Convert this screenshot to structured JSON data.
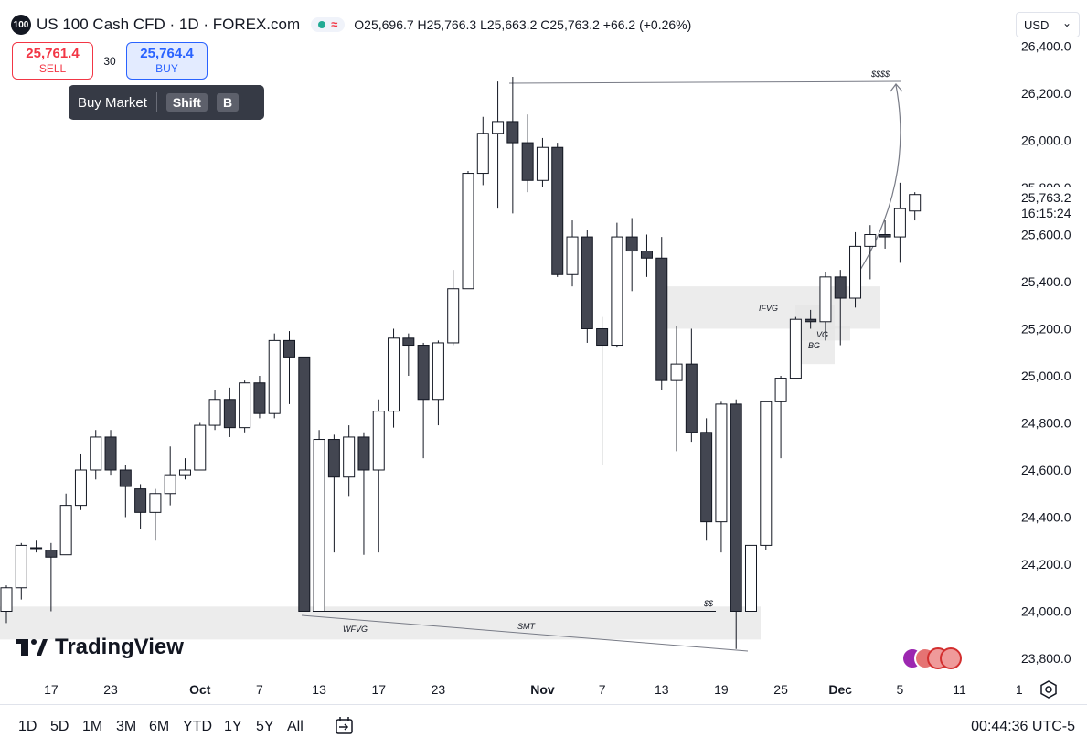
{
  "header": {
    "symbol_badge": "100",
    "title": "US 100 Cash CFD · 1D · FOREX.com",
    "ohlc": {
      "o_label": "O",
      "o": "25,696.7",
      "h_label": "H",
      "h": "25,766.3",
      "l_label": "L",
      "l": "25,663.2",
      "c_label": "C",
      "c": "25,763.2",
      "change": "+66.2 (+0.26%)"
    },
    "currency": "USD",
    "currency_caret": "⌄"
  },
  "trade": {
    "sell_price": "25,761.4",
    "sell_label": "SELL",
    "spread": "30",
    "buy_price": "25,764.4",
    "buy_label": "BUY"
  },
  "tooltip": {
    "text": "Buy Market",
    "key1": "Shift",
    "key2": "B"
  },
  "logo": {
    "text": "TradingView"
  },
  "bottom": {
    "ranges": [
      "1D",
      "5D",
      "1M",
      "3M",
      "6M",
      "YTD",
      "1Y",
      "5Y",
      "All"
    ],
    "clock": "00:44:36 UTC-5"
  },
  "colors": {
    "up_body": "#ffffff",
    "down_body": "#434651",
    "wick": "#131722",
    "zone": "#e6e6e6",
    "price_label_bg": "#ffffff"
  },
  "chart_data": {
    "type": "candlestick",
    "y_axis": {
      "ticks": [
        23800,
        24000,
        24200,
        24400,
        24600,
        24800,
        25000,
        25200,
        25400,
        25600,
        25800,
        26000,
        26200,
        26400
      ],
      "tick_labels": [
        "23,800.0",
        "24,000.0",
        "24,200.0",
        "24,400.0",
        "24,600.0",
        "24,800.0",
        "25,000.0",
        "25,200.0",
        "25,400.0",
        "25,600.0",
        "25,800.0",
        "26,000.0",
        "26,200.0",
        "26,400.0"
      ]
    },
    "x_axis": {
      "labels": [
        {
          "t": "17",
          "i": 3
        },
        {
          "t": "23",
          "i": 7
        },
        {
          "t": "Oct",
          "i": 13,
          "bold": true
        },
        {
          "t": "7",
          "i": 17
        },
        {
          "t": "13",
          "i": 21
        },
        {
          "t": "17",
          "i": 25
        },
        {
          "t": "23",
          "i": 29
        },
        {
          "t": "Nov",
          "i": 36,
          "bold": true
        },
        {
          "t": "7",
          "i": 40
        },
        {
          "t": "13",
          "i": 44
        },
        {
          "t": "19",
          "i": 48
        },
        {
          "t": "25",
          "i": 52
        },
        {
          "t": "Dec",
          "i": 56,
          "bold": true
        },
        {
          "t": "5",
          "i": 60
        },
        {
          "t": "11",
          "i": 64
        },
        {
          "t": "1",
          "i": 68
        }
      ]
    },
    "last_price": {
      "value": "25,763.2",
      "countdown": "16:15:24"
    },
    "candles": [
      [
        24000,
        24100,
        23950,
        24110
      ],
      [
        24100,
        24280,
        24050,
        24290
      ],
      [
        24270,
        24270,
        24250,
        24300
      ],
      [
        24260,
        24230,
        24000,
        24290
      ],
      [
        24240,
        24450,
        24240,
        24500
      ],
      [
        24450,
        24600,
        24430,
        24670
      ],
      [
        24600,
        24740,
        24560,
        24770
      ],
      [
        24740,
        24600,
        24580,
        24770
      ],
      [
        24600,
        24530,
        24400,
        24620
      ],
      [
        24520,
        24420,
        24350,
        24540
      ],
      [
        24420,
        24500,
        24300,
        24520
      ],
      [
        24500,
        24580,
        24450,
        24700
      ],
      [
        24580,
        24600,
        24560,
        24650
      ],
      [
        24600,
        24790,
        24600,
        24800
      ],
      [
        24790,
        24900,
        24770,
        24940
      ],
      [
        24900,
        24780,
        24740,
        24950
      ],
      [
        24780,
        24970,
        24760,
        24980
      ],
      [
        24970,
        24840,
        24820,
        25000
      ],
      [
        24840,
        25150,
        24820,
        25180
      ],
      [
        25150,
        25080,
        24880,
        25190
      ],
      [
        25080,
        24000,
        24000,
        25080
      ],
      [
        24000,
        24730,
        24000,
        24770
      ],
      [
        24730,
        24570,
        24250,
        24750
      ],
      [
        24570,
        24740,
        24490,
        24790
      ],
      [
        24740,
        24600,
        24240,
        24760
      ],
      [
        24600,
        24850,
        24250,
        24900
      ],
      [
        24850,
        25160,
        24780,
        25200
      ],
      [
        25160,
        25130,
        25000,
        25180
      ],
      [
        25130,
        24900,
        24650,
        25140
      ],
      [
        24900,
        25140,
        24790,
        25150
      ],
      [
        25140,
        25370,
        25130,
        25450
      ],
      [
        25370,
        25860,
        25370,
        25870
      ],
      [
        25860,
        26030,
        25810,
        26100
      ],
      [
        26030,
        26080,
        25710,
        26250
      ],
      [
        26080,
        25990,
        25690,
        26270
      ],
      [
        25990,
        25830,
        25780,
        26110
      ],
      [
        25830,
        25970,
        25800,
        26010
      ],
      [
        25970,
        25430,
        25420,
        25990
      ],
      [
        25430,
        25590,
        25380,
        25660
      ],
      [
        25590,
        25200,
        25140,
        25620
      ],
      [
        25200,
        25130,
        24620,
        25250
      ],
      [
        25130,
        25590,
        25120,
        25650
      ],
      [
        25590,
        25530,
        25360,
        25670
      ],
      [
        25530,
        25500,
        25420,
        25600
      ],
      [
        25500,
        24980,
        24940,
        25590
      ],
      [
        24980,
        25050,
        24680,
        25210
      ],
      [
        25050,
        24760,
        24720,
        25200
      ],
      [
        24760,
        24380,
        24300,
        24820
      ],
      [
        24380,
        24880,
        24250,
        24890
      ],
      [
        24880,
        24000,
        23840,
        24900
      ],
      [
        24000,
        24280,
        23960,
        24280
      ],
      [
        24280,
        24890,
        24260,
        24890
      ],
      [
        24890,
        24990,
        24650,
        25000
      ],
      [
        24990,
        25240,
        24990,
        25250
      ],
      [
        25240,
        25230,
        25200,
        25280
      ],
      [
        25230,
        25420,
        25150,
        25440
      ],
      [
        25420,
        25330,
        25130,
        25450
      ],
      [
        25330,
        25550,
        25290,
        25610
      ],
      [
        25550,
        25600,
        25410,
        25640
      ],
      [
        25600,
        25590,
        25540,
        25660
      ],
      [
        25590,
        25710,
        25480,
        25820
      ],
      [
        25700,
        25770,
        25660,
        25780
      ]
    ],
    "annotations": {
      "zones": [
        {
          "label": "IFVG",
          "from": 25200,
          "to": 25380
        },
        {
          "label": "VG",
          "from": 25150,
          "to": 25210
        },
        {
          "label": "BG",
          "from": 25050,
          "to": 25300
        },
        {
          "label": "WFVG",
          "from": 23880,
          "to": 24020
        }
      ],
      "lines": [
        {
          "label": "$$$$",
          "price": 26250
        },
        {
          "label": "$$",
          "price": 24000
        },
        {
          "label": "SMT"
        }
      ]
    }
  }
}
